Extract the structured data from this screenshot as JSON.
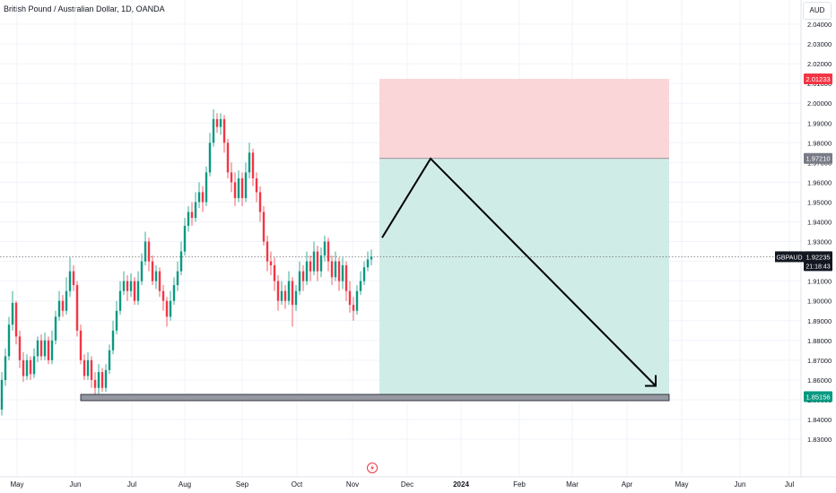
{
  "header": {
    "title": "British Pound / Australian Dollar, 1D, OANDA"
  },
  "price_axis": {
    "currency": "AUD",
    "ticks": [
      "2.04000",
      "2.03000",
      "2.02000",
      "2.01000",
      "2.00000",
      "1.99000",
      "1.98000",
      "1.97000",
      "1.96000",
      "1.95000",
      "1.94000",
      "1.93000",
      "1.92000",
      "1.91000",
      "1.90000",
      "1.89000",
      "1.88000",
      "1.87000",
      "1.86000",
      "1.85000",
      "1.84000",
      "1.83000"
    ],
    "ylim": [
      1.825,
      2.045
    ]
  },
  "time_axis": {
    "labels": [
      "May",
      "Jun",
      "Jul",
      "Aug",
      "Sep",
      "Oct",
      "Nov",
      "Dec",
      "2024",
      "Feb",
      "Mar",
      "Apr",
      "May",
      "Jun",
      "Jul"
    ],
    "bold_label": "2024"
  },
  "price_tags": {
    "stop": {
      "text": "2.01233",
      "color": "#f23645"
    },
    "entry": {
      "text": "1.97210",
      "color": "#787b86"
    },
    "target": {
      "text": "1.85156",
      "color": "#089981"
    },
    "current": {
      "symbol": "GBPAUD",
      "price": "1.92235",
      "countdown": "21:18:43",
      "color": "#131722"
    }
  },
  "colors": {
    "up": "#089981",
    "down": "#f23645",
    "risk_zone": "#fbd6d8",
    "reward_zone": "#d0ece7",
    "support_bar": "#9598a1",
    "arrow": "#000000"
  },
  "chart_data": {
    "type": "candlestick",
    "symbol": "GBPAUD",
    "interval": "1D",
    "source": "OANDA",
    "title": "British Pound / Australian Dollar, 1D, OANDA",
    "x_months": [
      "May",
      "Jun",
      "Jul",
      "Aug",
      "Sep",
      "Oct",
      "Nov"
    ],
    "candles": [
      {
        "o": 1.845,
        "c": 1.86,
        "h": 1.864,
        "l": 1.842
      },
      {
        "o": 1.86,
        "c": 1.872,
        "h": 1.876,
        "l": 1.857
      },
      {
        "o": 1.872,
        "c": 1.888,
        "h": 1.892,
        "l": 1.87
      },
      {
        "o": 1.888,
        "c": 1.899,
        "h": 1.905,
        "l": 1.885
      },
      {
        "o": 1.899,
        "c": 1.882,
        "h": 1.9,
        "l": 1.878
      },
      {
        "o": 1.882,
        "c": 1.87,
        "h": 1.885,
        "l": 1.866
      },
      {
        "o": 1.87,
        "c": 1.862,
        "h": 1.874,
        "l": 1.859
      },
      {
        "o": 1.862,
        "c": 1.87,
        "h": 1.873,
        "l": 1.86
      },
      {
        "o": 1.87,
        "c": 1.863,
        "h": 1.872,
        "l": 1.86
      },
      {
        "o": 1.863,
        "c": 1.872,
        "h": 1.876,
        "l": 1.861
      },
      {
        "o": 1.872,
        "c": 1.88,
        "h": 1.882,
        "l": 1.869
      },
      {
        "o": 1.88,
        "c": 1.872,
        "h": 1.883,
        "l": 1.87
      },
      {
        "o": 1.872,
        "c": 1.88,
        "h": 1.884,
        "l": 1.87
      },
      {
        "o": 1.88,
        "c": 1.87,
        "h": 1.882,
        "l": 1.868
      },
      {
        "o": 1.87,
        "c": 1.88,
        "h": 1.885,
        "l": 1.868
      },
      {
        "o": 1.88,
        "c": 1.892,
        "h": 1.895,
        "l": 1.878
      },
      {
        "o": 1.892,
        "c": 1.9,
        "h": 1.905,
        "l": 1.89
      },
      {
        "o": 1.9,
        "c": 1.895,
        "h": 1.903,
        "l": 1.892
      },
      {
        "o": 1.895,
        "c": 1.905,
        "h": 1.912,
        "l": 1.893
      },
      {
        "o": 1.905,
        "c": 1.915,
        "h": 1.922,
        "l": 1.902
      },
      {
        "o": 1.915,
        "c": 1.908,
        "h": 1.918,
        "l": 1.905
      },
      {
        "o": 1.908,
        "c": 1.885,
        "h": 1.91,
        "l": 1.882
      },
      {
        "o": 1.885,
        "c": 1.87,
        "h": 1.888,
        "l": 1.868
      },
      {
        "o": 1.87,
        "c": 1.862,
        "h": 1.873,
        "l": 1.86
      },
      {
        "o": 1.862,
        "c": 1.87,
        "h": 1.874,
        "l": 1.86
      },
      {
        "o": 1.87,
        "c": 1.86,
        "h": 1.872,
        "l": 1.856
      },
      {
        "o": 1.86,
        "c": 1.856,
        "h": 1.864,
        "l": 1.85
      },
      {
        "o": 1.856,
        "c": 1.864,
        "h": 1.868,
        "l": 1.853
      },
      {
        "o": 1.864,
        "c": 1.856,
        "h": 1.866,
        "l": 1.854
      },
      {
        "o": 1.856,
        "c": 1.865,
        "h": 1.868,
        "l": 1.854
      },
      {
        "o": 1.865,
        "c": 1.875,
        "h": 1.878,
        "l": 1.863
      },
      {
        "o": 1.875,
        "c": 1.885,
        "h": 1.89,
        "l": 1.873
      },
      {
        "o": 1.885,
        "c": 1.895,
        "h": 1.9,
        "l": 1.883
      },
      {
        "o": 1.895,
        "c": 1.905,
        "h": 1.91,
        "l": 1.893
      },
      {
        "o": 1.905,
        "c": 1.91,
        "h": 1.915,
        "l": 1.903
      },
      {
        "o": 1.91,
        "c": 1.905,
        "h": 1.913,
        "l": 1.9
      },
      {
        "o": 1.905,
        "c": 1.91,
        "h": 1.914,
        "l": 1.902
      },
      {
        "o": 1.91,
        "c": 1.9,
        "h": 1.912,
        "l": 1.898
      },
      {
        "o": 1.9,
        "c": 1.91,
        "h": 1.915,
        "l": 1.898
      },
      {
        "o": 1.91,
        "c": 1.92,
        "h": 1.924,
        "l": 1.908
      },
      {
        "o": 1.92,
        "c": 1.93,
        "h": 1.935,
        "l": 1.918
      },
      {
        "o": 1.93,
        "c": 1.92,
        "h": 1.932,
        "l": 1.915
      },
      {
        "o": 1.92,
        "c": 1.91,
        "h": 1.923,
        "l": 1.908
      },
      {
        "o": 1.91,
        "c": 1.915,
        "h": 1.918,
        "l": 1.906
      },
      {
        "o": 1.915,
        "c": 1.905,
        "h": 1.917,
        "l": 1.902
      },
      {
        "o": 1.905,
        "c": 1.9,
        "h": 1.908,
        "l": 1.895
      },
      {
        "o": 1.9,
        "c": 1.892,
        "h": 1.902,
        "l": 1.887
      },
      {
        "o": 1.892,
        "c": 1.9,
        "h": 1.905,
        "l": 1.89
      },
      {
        "o": 1.9,
        "c": 1.908,
        "h": 1.912,
        "l": 1.898
      },
      {
        "o": 1.908,
        "c": 1.915,
        "h": 1.92,
        "l": 1.905
      },
      {
        "o": 1.915,
        "c": 1.925,
        "h": 1.93,
        "l": 1.913
      },
      {
        "o": 1.925,
        "c": 1.938,
        "h": 1.942,
        "l": 1.923
      },
      {
        "o": 1.938,
        "c": 1.945,
        "h": 1.948,
        "l": 1.935
      },
      {
        "o": 1.945,
        "c": 1.942,
        "h": 1.95,
        "l": 1.938
      },
      {
        "o": 1.942,
        "c": 1.95,
        "h": 1.955,
        "l": 1.94
      },
      {
        "o": 1.95,
        "c": 1.955,
        "h": 1.96,
        "l": 1.947
      },
      {
        "o": 1.955,
        "c": 1.95,
        "h": 1.958,
        "l": 1.945
      },
      {
        "o": 1.95,
        "c": 1.965,
        "h": 1.968,
        "l": 1.948
      },
      {
        "o": 1.965,
        "c": 1.98,
        "h": 1.985,
        "l": 1.963
      },
      {
        "o": 1.98,
        "c": 1.992,
        "h": 1.997,
        "l": 1.978
      },
      {
        "o": 1.992,
        "c": 1.988,
        "h": 1.995,
        "l": 1.985
      },
      {
        "o": 1.988,
        "c": 1.992,
        "h": 1.995,
        "l": 1.984
      },
      {
        "o": 1.992,
        "c": 1.98,
        "h": 1.994,
        "l": 1.975
      },
      {
        "o": 1.98,
        "c": 1.965,
        "h": 1.982,
        "l": 1.962
      },
      {
        "o": 1.965,
        "c": 1.96,
        "h": 1.97,
        "l": 1.955
      },
      {
        "o": 1.96,
        "c": 1.952,
        "h": 1.965,
        "l": 1.948
      },
      {
        "o": 1.952,
        "c": 1.962,
        "h": 1.966,
        "l": 1.95
      },
      {
        "o": 1.962,
        "c": 1.952,
        "h": 1.965,
        "l": 1.948
      },
      {
        "o": 1.952,
        "c": 1.965,
        "h": 1.97,
        "l": 1.95
      },
      {
        "o": 1.965,
        "c": 1.975,
        "h": 1.98,
        "l": 1.962
      },
      {
        "o": 1.975,
        "c": 1.962,
        "h": 1.977,
        "l": 1.958
      },
      {
        "o": 1.962,
        "c": 1.955,
        "h": 1.965,
        "l": 1.95
      },
      {
        "o": 1.955,
        "c": 1.945,
        "h": 1.958,
        "l": 1.94
      },
      {
        "o": 1.945,
        "c": 1.93,
        "h": 1.948,
        "l": 1.928
      },
      {
        "o": 1.93,
        "c": 1.92,
        "h": 1.933,
        "l": 1.915
      },
      {
        "o": 1.92,
        "c": 1.918,
        "h": 1.925,
        "l": 1.913
      },
      {
        "o": 1.918,
        "c": 1.91,
        "h": 1.922,
        "l": 1.905
      },
      {
        "o": 1.91,
        "c": 1.9,
        "h": 1.913,
        "l": 1.895
      },
      {
        "o": 1.9,
        "c": 1.905,
        "h": 1.91,
        "l": 1.898
      },
      {
        "o": 1.905,
        "c": 1.9,
        "h": 1.908,
        "l": 1.896
      },
      {
        "o": 1.9,
        "c": 1.91,
        "h": 1.915,
        "l": 1.898
      },
      {
        "o": 1.91,
        "c": 1.898,
        "h": 1.912,
        "l": 1.887
      },
      {
        "o": 1.898,
        "c": 1.905,
        "h": 1.908,
        "l": 1.895
      },
      {
        "o": 1.905,
        "c": 1.915,
        "h": 1.92,
        "l": 1.903
      },
      {
        "o": 1.915,
        "c": 1.91,
        "h": 1.918,
        "l": 1.905
      },
      {
        "o": 1.91,
        "c": 1.92,
        "h": 1.925,
        "l": 1.908
      },
      {
        "o": 1.92,
        "c": 1.915,
        "h": 1.923,
        "l": 1.91
      },
      {
        "o": 1.915,
        "c": 1.925,
        "h": 1.93,
        "l": 1.913
      },
      {
        "o": 1.925,
        "c": 1.915,
        "h": 1.928,
        "l": 1.91
      },
      {
        "o": 1.915,
        "c": 1.923,
        "h": 1.927,
        "l": 1.912
      },
      {
        "o": 1.923,
        "c": 1.93,
        "h": 1.933,
        "l": 1.92
      },
      {
        "o": 1.93,
        "c": 1.92,
        "h": 1.932,
        "l": 1.915
      },
      {
        "o": 1.92,
        "c": 1.912,
        "h": 1.923,
        "l": 1.908
      },
      {
        "o": 1.912,
        "c": 1.92,
        "h": 1.925,
        "l": 1.91
      },
      {
        "o": 1.92,
        "c": 1.91,
        "h": 1.922,
        "l": 1.905
      },
      {
        "o": 1.91,
        "c": 1.918,
        "h": 1.922,
        "l": 1.906
      },
      {
        "o": 1.918,
        "c": 1.905,
        "h": 1.92,
        "l": 1.9
      },
      {
        "o": 1.905,
        "c": 1.898,
        "h": 1.91,
        "l": 1.894
      },
      {
        "o": 1.898,
        "c": 1.895,
        "h": 1.902,
        "l": 1.89
      },
      {
        "o": 1.895,
        "c": 1.905,
        "h": 1.908,
        "l": 1.893
      },
      {
        "o": 1.905,
        "c": 1.91,
        "h": 1.915,
        "l": 1.903
      },
      {
        "o": 1.91,
        "c": 1.917,
        "h": 1.92,
        "l": 1.908
      },
      {
        "o": 1.917,
        "c": 1.921,
        "h": 1.925,
        "l": 1.915
      },
      {
        "o": 1.921,
        "c": 1.9224,
        "h": 1.926,
        "l": 1.918
      }
    ],
    "last_price": 1.92235,
    "position": {
      "direction": "short",
      "entry": 1.9721,
      "stop_loss": 2.01233,
      "take_profit": 1.85156
    },
    "support_level": 1.85156,
    "projected_path": [
      1.932,
      1.972,
      1.857
    ]
  }
}
